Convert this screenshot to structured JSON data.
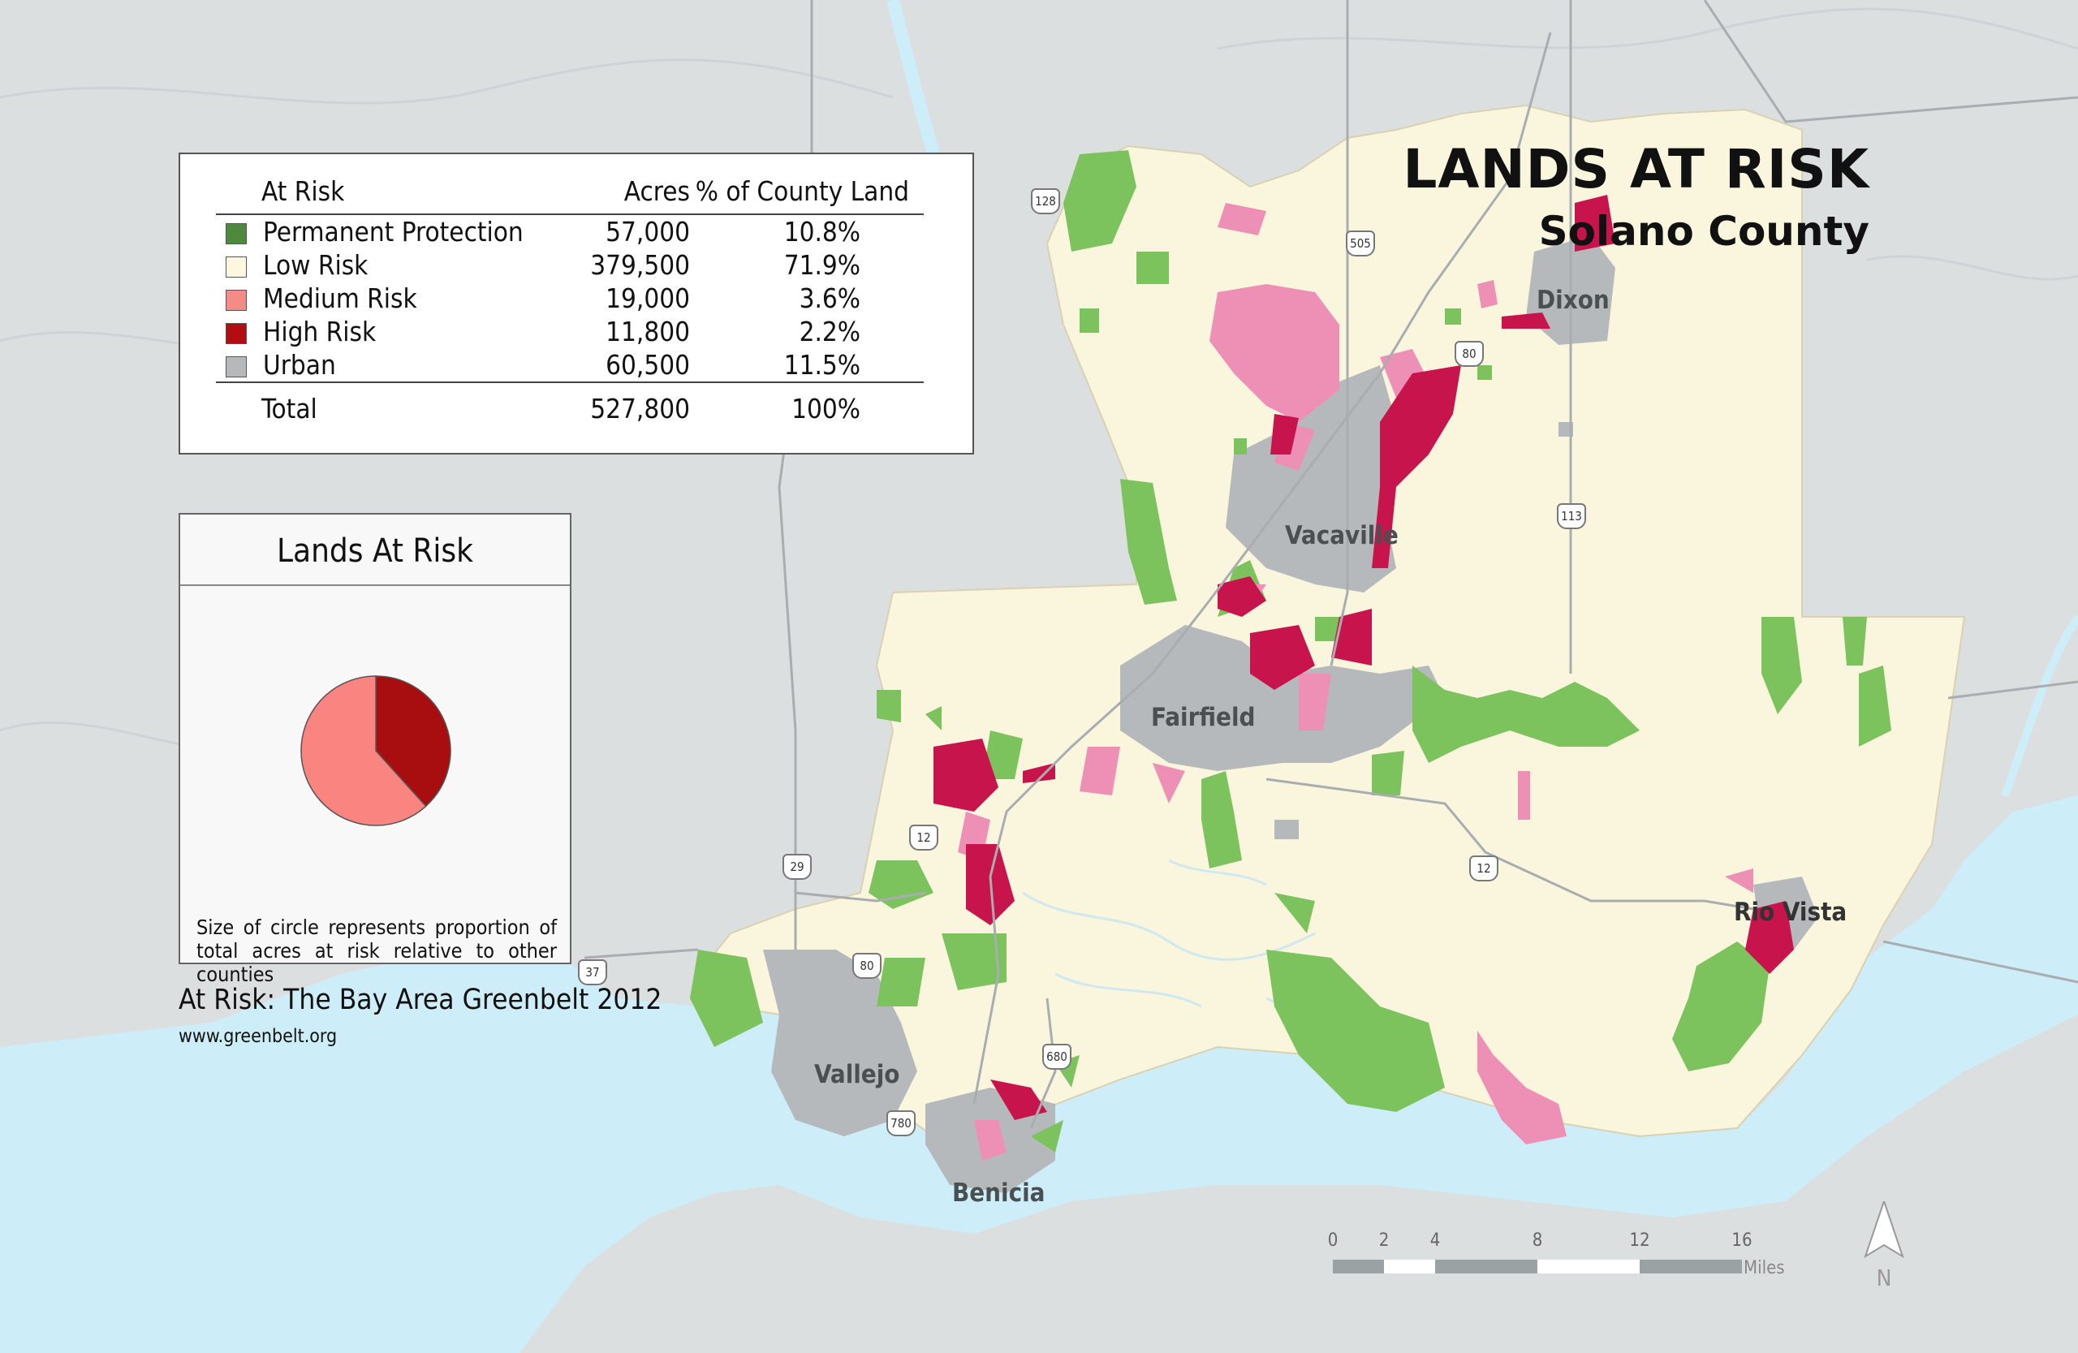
{
  "title": "LANDS AT RISK",
  "subtitle": "Solano County",
  "legend": {
    "headers": {
      "category": "At Risk",
      "acres": "Acres",
      "pct": "% of County Land"
    },
    "rows": [
      {
        "label": "Permanent Protection",
        "acres": "57,000",
        "pct": "10.8%",
        "color": "#4e8a3e"
      },
      {
        "label": "Low Risk",
        "acres": "379,500",
        "pct": "71.9%",
        "color": "#fdf7df"
      },
      {
        "label": "Medium Risk",
        "acres": "19,000",
        "pct": "3.6%",
        "color": "#f58b86"
      },
      {
        "label": "High Risk",
        "acres": "11,800",
        "pct": "2.2%",
        "color": "#b30d12"
      },
      {
        "label": "Urban",
        "acres": "60,500",
        "pct": "11.5%",
        "color": "#b6b8ba"
      }
    ],
    "total": {
      "label": "Total",
      "acres": "527,800",
      "pct": "100%"
    }
  },
  "pie": {
    "title": "Lands At Risk",
    "note": "Size of circle represents proportion of total acres at risk relative to other counties",
    "slices": [
      {
        "category": "High Risk",
        "acres": 11800,
        "color": "#a80d10"
      },
      {
        "category": "Medium Risk",
        "acres": 19000,
        "color": "#f98480"
      }
    ]
  },
  "credit": "At Risk: The Bay Area Greenbelt 2012",
  "url": "www.greenbelt.org",
  "cities": [
    "Dixon",
    "Vacaville",
    "Fairfield",
    "Rio Vista",
    "Vallejo",
    "Benicia"
  ],
  "roads": [
    "128",
    "505",
    "80",
    "113",
    "12",
    "29",
    "12",
    "37",
    "80",
    "680",
    "780"
  ],
  "scale": {
    "ticks": [
      "0",
      "2",
      "4",
      "8",
      "12",
      "16"
    ],
    "unit": "Miles"
  },
  "north": "N",
  "colors": {
    "water": "#cdeef8",
    "terrain": "#dfe2e3",
    "low_risk": "#faf6de",
    "protected": "#7cc35e",
    "medium_risk": "#ee8fb6",
    "high_risk": "#c8144c",
    "urban": "#b6b9bb"
  }
}
